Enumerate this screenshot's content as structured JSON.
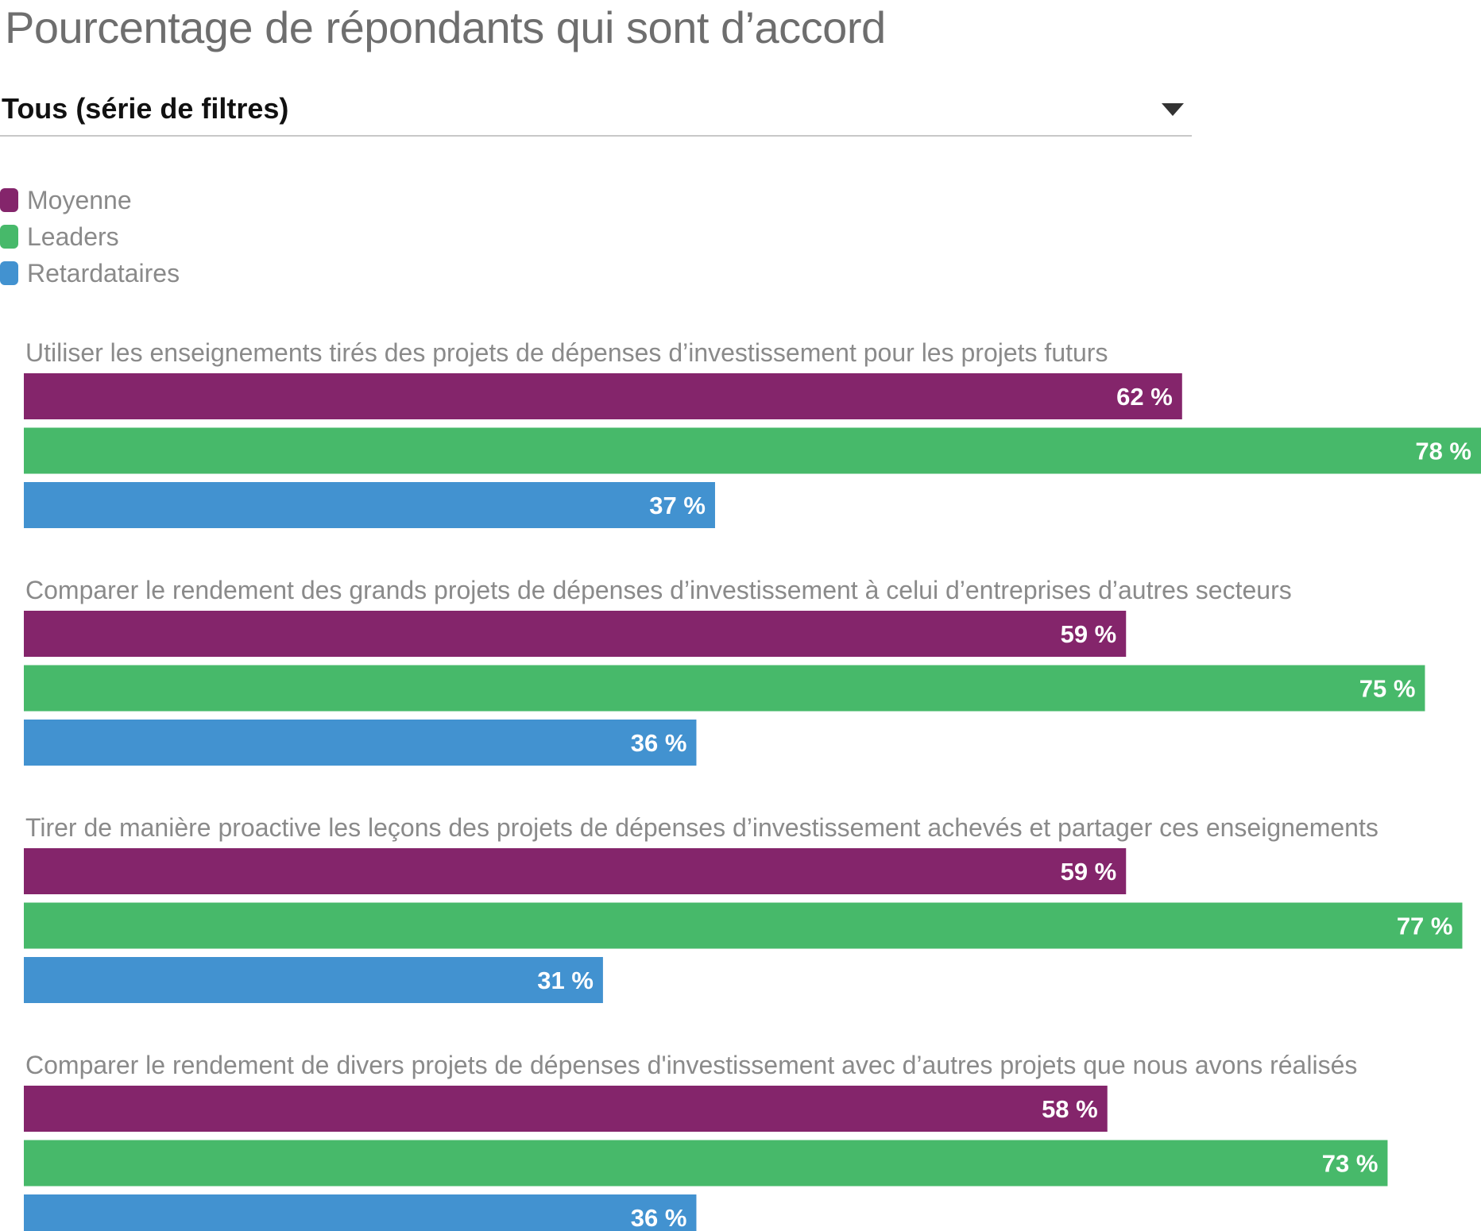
{
  "header": {
    "title": "Pourcentage de répondants qui sont d’accord",
    "filter_label": "Tous (série de filtres)"
  },
  "legend": [
    {
      "label": "Moyenne",
      "color": "#84256b"
    },
    {
      "label": "Leaders",
      "color": "#47b96a"
    },
    {
      "label": "Retardataires",
      "color": "#4292d0"
    }
  ],
  "chart_data": {
    "type": "bar",
    "orientation": "horizontal",
    "title": "Pourcentage de répondants qui sont d’accord",
    "xlim": [
      0,
      78
    ],
    "categories": [
      "Utiliser les enseignements tirés des projets de dépenses d’investissement pour les projets futurs",
      "Comparer le rendement des grands projets de dépenses d’investissement à celui d’entreprises d’autres secteurs",
      "Tirer de manière proactive les leçons des projets de dépenses d’investissement achevés et partager ces enseignements",
      "Comparer le rendement de divers projets de dépenses d'investissement avec d’autres projets que nous avons réalisés"
    ],
    "series": [
      {
        "name": "Moyenne",
        "color": "#84256b",
        "values": [
          62,
          59,
          59,
          58
        ],
        "labels": [
          "62 %",
          "59 %",
          "59 %",
          "58 %"
        ]
      },
      {
        "name": "Leaders",
        "color": "#47b96a",
        "values": [
          78,
          75,
          77,
          73
        ],
        "labels": [
          "78 %",
          "75 %",
          "77 %",
          "73 %"
        ]
      },
      {
        "name": "Retardataires",
        "color": "#4292d0",
        "values": [
          37,
          36,
          31,
          36
        ],
        "labels": [
          "37 %",
          "36 %",
          "31 %",
          "36 %"
        ]
      }
    ],
    "legend_position": "top-left",
    "grid": false
  }
}
